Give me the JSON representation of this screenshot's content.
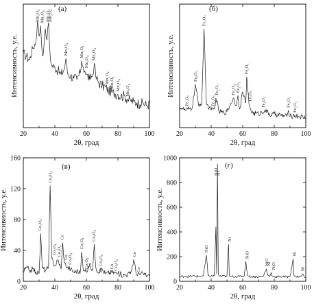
{
  "chart_data": [
    {
      "id": "a",
      "type": "line",
      "panel_label": "(а)",
      "xlabel": "2θ, град",
      "ylabel": "Интенсивность, у.е.",
      "xlim": [
        20,
        100
      ],
      "ylim": [
        0,
        200
      ],
      "x_ticks": [
        "20",
        "40",
        "60",
        "80",
        "100"
      ],
      "y_ticks": [],
      "series": [
        {
          "x": [
            20,
            22,
            24,
            26,
            28,
            29,
            30,
            31,
            32,
            33,
            34,
            35,
            36,
            37,
            38,
            40,
            42,
            44,
            46,
            47,
            48,
            50,
            52,
            54,
            56,
            57,
            58,
            59,
            60,
            62,
            64,
            65,
            66,
            68,
            70,
            72,
            74,
            76,
            78,
            80,
            82,
            84,
            86,
            88,
            90,
            92,
            94,
            96,
            98,
            100
          ],
          "y": [
            120,
            115,
            110,
            128,
            140,
            172,
            148,
            165,
            118,
            130,
            160,
            142,
            170,
            118,
            100,
            98,
            92,
            86,
            95,
            112,
            88,
            84,
            80,
            78,
            88,
            108,
            98,
            92,
            86,
            78,
            86,
            104,
            82,
            72,
            68,
            66,
            60,
            58,
            55,
            54,
            50,
            52,
            46,
            44,
            42,
            40,
            38,
            40,
            36,
            38
          ]
        }
      ],
      "annotations": [
        {
          "label": "Mn₂O₄",
          "x": 29
        },
        {
          "label": "Mn₂O₄",
          "x": 32
        },
        {
          "label": "Mn₂O₄",
          "x": 35.5
        },
        {
          "label": "Mn₂O₄",
          "x": 37
        },
        {
          "label": "Mn₂O₄",
          "x": 47
        },
        {
          "label": "Mn₂O₄",
          "x": 57
        },
        {
          "label": "Mn₂O₄",
          "x": 60
        },
        {
          "label": "Mn₂O₄",
          "x": 64.5
        },
        {
          "label": "Mn₂O₄",
          "x": 73
        },
        {
          "label": "Mn₂O₄",
          "x": 76
        },
        {
          "label": "Mn₂O₄",
          "x": 80
        },
        {
          "label": "Mn₂O₄",
          "x": 86
        }
      ]
    },
    {
      "id": "b",
      "type": "line",
      "panel_label": "(б)",
      "xlabel": "2θ, град",
      "ylabel": "Интенсивность, у.е.",
      "xlim": [
        20,
        100
      ],
      "ylim": [
        0,
        200
      ],
      "x_ticks": [
        "20",
        "40",
        "60",
        "80",
        "100"
      ],
      "y_ticks": [],
      "series": [
        {
          "x": [
            20,
            22,
            24,
            26,
            28,
            30,
            32,
            34,
            35.5,
            37,
            40,
            42,
            43,
            45,
            48,
            50,
            54,
            56,
            57,
            58,
            60,
            62,
            62.5,
            64,
            66,
            70,
            74,
            78,
            80,
            84,
            88,
            89,
            90,
            92,
            96,
            100
          ],
          "y": [
            34,
            30,
            28,
            30,
            32,
            70,
            36,
            40,
            160,
            38,
            28,
            30,
            48,
            26,
            24,
            26,
            48,
            36,
            52,
            30,
            58,
            40,
            82,
            38,
            24,
            22,
            28,
            20,
            22,
            20,
            18,
            28,
            18,
            20,
            18,
            16
          ]
        }
      ],
      "annotations": [
        {
          "label": "Fe₂O₃",
          "x": 24.5
        },
        {
          "label": "Fe₂O₃",
          "x": 30
        },
        {
          "label": "Fe₂O₃",
          "x": 35.5
        },
        {
          "label": "Fe₂O₃",
          "x": 41
        },
        {
          "label": "Fe₂O₃",
          "x": 43.5
        },
        {
          "label": "Fe₂O₃",
          "x": 54
        },
        {
          "label": "Fe₂O₃",
          "x": 57
        },
        {
          "label": "Fe₂O₃",
          "x": 62.5
        },
        {
          "label": "Fe₂O₃",
          "x": 64.5
        },
        {
          "label": "Fe₂O₃",
          "x": 73
        },
        {
          "label": "Fe₂O₃",
          "x": 89
        },
        {
          "label": "Fe₂O₃",
          "x": 93
        }
      ]
    },
    {
      "id": "c",
      "type": "line",
      "panel_label": "(в)",
      "xlabel": "2θ, град",
      "ylabel": "Интенсивность, у.е.",
      "xlim": [
        20,
        100
      ],
      "ylim": [
        0,
        160
      ],
      "x_ticks": [
        "20",
        "40",
        "60",
        "80",
        "100"
      ],
      "y_ticks": [
        "0",
        "40",
        "80",
        "120",
        "160"
      ],
      "series": [
        {
          "x": [
            20,
            22,
            24,
            26,
            28,
            30,
            31,
            32,
            34,
            36,
            37,
            38,
            40,
            42,
            44,
            45,
            46,
            48,
            50,
            52,
            54,
            56,
            57,
            58,
            60,
            62,
            64,
            65,
            66,
            68,
            70,
            72,
            76,
            80,
            84,
            88,
            90,
            92,
            96,
            100
          ],
          "y": [
            12,
            18,
            14,
            16,
            12,
            10,
            62,
            18,
            14,
            18,
            124,
            30,
            20,
            28,
            16,
            50,
            24,
            18,
            16,
            12,
            14,
            10,
            38,
            14,
            12,
            22,
            14,
            48,
            18,
            12,
            16,
            10,
            12,
            10,
            8,
            10,
            28,
            8,
            10,
            6
          ]
        }
      ],
      "annotations": [
        {
          "label": "Co₃O₄",
          "x": 30.5
        },
        {
          "label": "Co₃O₄",
          "x": 37
        },
        {
          "label": "Co₃O₄",
          "x": 39.5
        },
        {
          "label": "Co₃O₄",
          "x": 42.5
        },
        {
          "label": "Co",
          "x": 44.5
        },
        {
          "label": "Co",
          "x": 47
        },
        {
          "label": "Co₃O₄",
          "x": 49.5
        },
        {
          "label": "Co₃O₄",
          "x": 57
        },
        {
          "label": "Co₃O₄",
          "x": 60
        },
        {
          "label": "Co₃O₄",
          "x": 64.5
        },
        {
          "label": "Co₃O₄",
          "x": 69
        },
        {
          "label": "Co",
          "x": 76
        },
        {
          "label": "Co₃O₄",
          "x": 78.5
        },
        {
          "label": "Co",
          "x": 90.5
        },
        {
          "label": "Co",
          "x": 93
        }
      ]
    },
    {
      "id": "d",
      "type": "line",
      "panel_label": "(г)",
      "xlabel": "2θ, град",
      "ylabel": "Интенсивность, у.е.",
      "xlim": [
        20,
        100
      ],
      "ylim": [
        0,
        1000
      ],
      "x_ticks": [
        "20",
        "40",
        "60",
        "80",
        "100"
      ],
      "y_ticks": [
        "0",
        "200",
        "400",
        "600",
        "800",
        "1000"
      ],
      "series": [
        {
          "x": [
            20,
            24,
            28,
            32,
            35,
            37,
            38,
            40,
            42,
            43,
            43.5,
            44,
            44.5,
            45,
            47,
            50,
            51,
            51.5,
            52,
            54,
            58,
            61,
            62,
            63,
            64,
            66,
            70,
            73,
            75,
            76,
            77,
            78,
            79,
            80,
            84,
            88,
            90,
            92,
            92.5,
            93,
            94,
            97,
            98,
            99,
            100
          ],
          "y": [
            40,
            38,
            42,
            40,
            44,
            210,
            48,
            42,
            46,
            440,
            60,
            950,
            56,
            44,
            42,
            40,
            300,
            46,
            40,
            38,
            40,
            44,
            160,
            50,
            40,
            38,
            36,
            40,
            100,
            48,
            38,
            70,
            40,
            36,
            38,
            36,
            40,
            180,
            48,
            40,
            38,
            40,
            60,
            36,
            34
          ]
        }
      ],
      "annotations": [
        {
          "label": "NiO",
          "x": 37
        },
        {
          "label": "NiO",
          "x": 43
        },
        {
          "label": "Ni",
          "x": 44.5
        },
        {
          "label": "Ni",
          "x": 51.8
        },
        {
          "label": "NiO",
          "x": 62.8
        },
        {
          "label": "NiO",
          "x": 75.2
        },
        {
          "label": "Ni",
          "x": 76.5
        },
        {
          "label": "NiO",
          "x": 79.5
        },
        {
          "label": "Ni",
          "x": 92.8
        },
        {
          "label": "Ni",
          "x": 98
        }
      ]
    }
  ]
}
